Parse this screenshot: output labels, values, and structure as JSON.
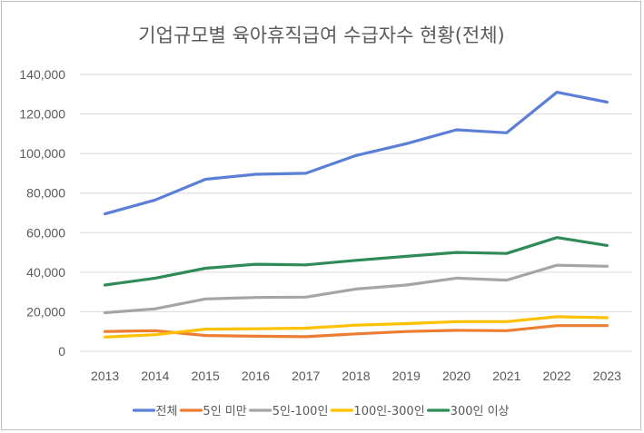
{
  "chart_data": {
    "type": "line",
    "title": "기업규모별 육아휴직급여 수급자수 현황(전체)",
    "xlabel": "",
    "ylabel": "",
    "x": [
      "2013",
      "2014",
      "2015",
      "2016",
      "2017",
      "2018",
      "2019",
      "2020",
      "2021",
      "2022",
      "2023"
    ],
    "ylim": [
      0,
      140000
    ],
    "yticks": [
      "0",
      "20,000",
      "40,000",
      "60,000",
      "80,000",
      "100,000",
      "120,000",
      "140,000"
    ],
    "grid": true,
    "legend_position": "bottom",
    "series": [
      {
        "name": "전체",
        "color": "#5b7fd6",
        "values": [
          69500,
          76500,
          87000,
          89500,
          90000,
          99000,
          105000,
          112000,
          110500,
          131000,
          126000
        ]
      },
      {
        "name": "5인 미만",
        "color": "#ed7d31",
        "values": [
          10000,
          10400,
          8000,
          7600,
          7400,
          8800,
          10000,
          10600,
          10400,
          13000,
          13000
        ]
      },
      {
        "name": "5인-100인",
        "color": "#a5a5a5",
        "values": [
          19500,
          21500,
          26500,
          27200,
          27400,
          31500,
          33500,
          37000,
          36000,
          43500,
          43000
        ]
      },
      {
        "name": "100인-300인",
        "color": "#ffc000",
        "values": [
          7200,
          8400,
          11200,
          11400,
          11700,
          13200,
          14000,
          15000,
          15000,
          17500,
          17000
        ]
      },
      {
        "name": "300인 이상",
        "color": "#2e8b57",
        "values": [
          33500,
          37000,
          42000,
          44000,
          43700,
          46000,
          48000,
          50000,
          49500,
          57500,
          53500
        ]
      }
    ]
  }
}
